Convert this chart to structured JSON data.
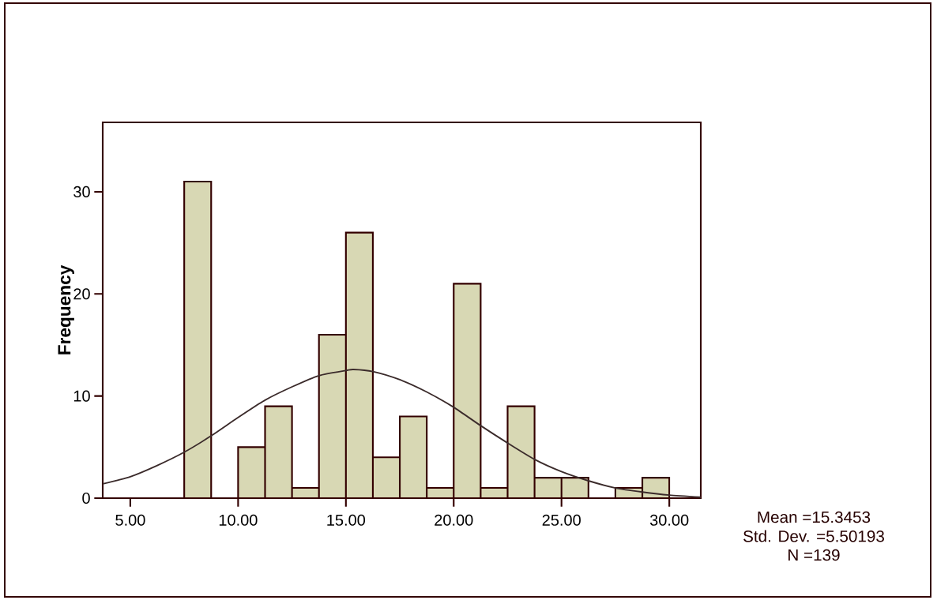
{
  "chart_data": {
    "type": "histogram",
    "ylabel": "Frequency",
    "xlim": [
      3.72,
      31.46
    ],
    "ylim": [
      0,
      36.8
    ],
    "xticks": [
      {
        "value": 5,
        "label": "5.00"
      },
      {
        "value": 10,
        "label": "10.00"
      },
      {
        "value": 15,
        "label": "15.00"
      },
      {
        "value": 20,
        "label": "20.00"
      },
      {
        "value": 25,
        "label": "25.00"
      },
      {
        "value": 30,
        "label": "30.00"
      }
    ],
    "yticks": [
      0,
      10,
      20,
      30
    ],
    "series": [
      {
        "color": "#d8d8b4",
        "bins": [
          7.5,
          8.75,
          10,
          11.25,
          12.5,
          13.75,
          15,
          16.25,
          17.5,
          18.75,
          20,
          21.25,
          22.5,
          23.75,
          25,
          26.25,
          27.5,
          28.75,
          30
        ],
        "values": [
          31,
          0,
          5,
          9,
          1,
          16,
          26,
          4,
          8,
          1,
          21,
          1,
          9,
          2,
          2,
          0,
          1,
          2
        ]
      },
      {
        "type": "line",
        "color": "#3b2b2b",
        "x": [
          3.72,
          5,
          6.25,
          7.5,
          8.75,
          10,
          11.25,
          12.5,
          13.75,
          15,
          15.35,
          16.25,
          17.5,
          18.75,
          20,
          21.25,
          22.5,
          23.75,
          25,
          26.25,
          27.5,
          28.75,
          30,
          31.46
        ],
        "values": [
          1.4,
          2.1,
          3.2,
          4.5,
          6.1,
          7.9,
          9.6,
          10.9,
          12.0,
          12.5,
          12.6,
          12.4,
          11.6,
          10.4,
          8.9,
          7.1,
          5.4,
          3.8,
          2.6,
          1.7,
          1.0,
          0.6,
          0.3,
          0.1
        ]
      }
    ],
    "annotations": [
      "Mean =15.3453",
      "Std. Dev. =5.50193",
      "N =139"
    ]
  }
}
